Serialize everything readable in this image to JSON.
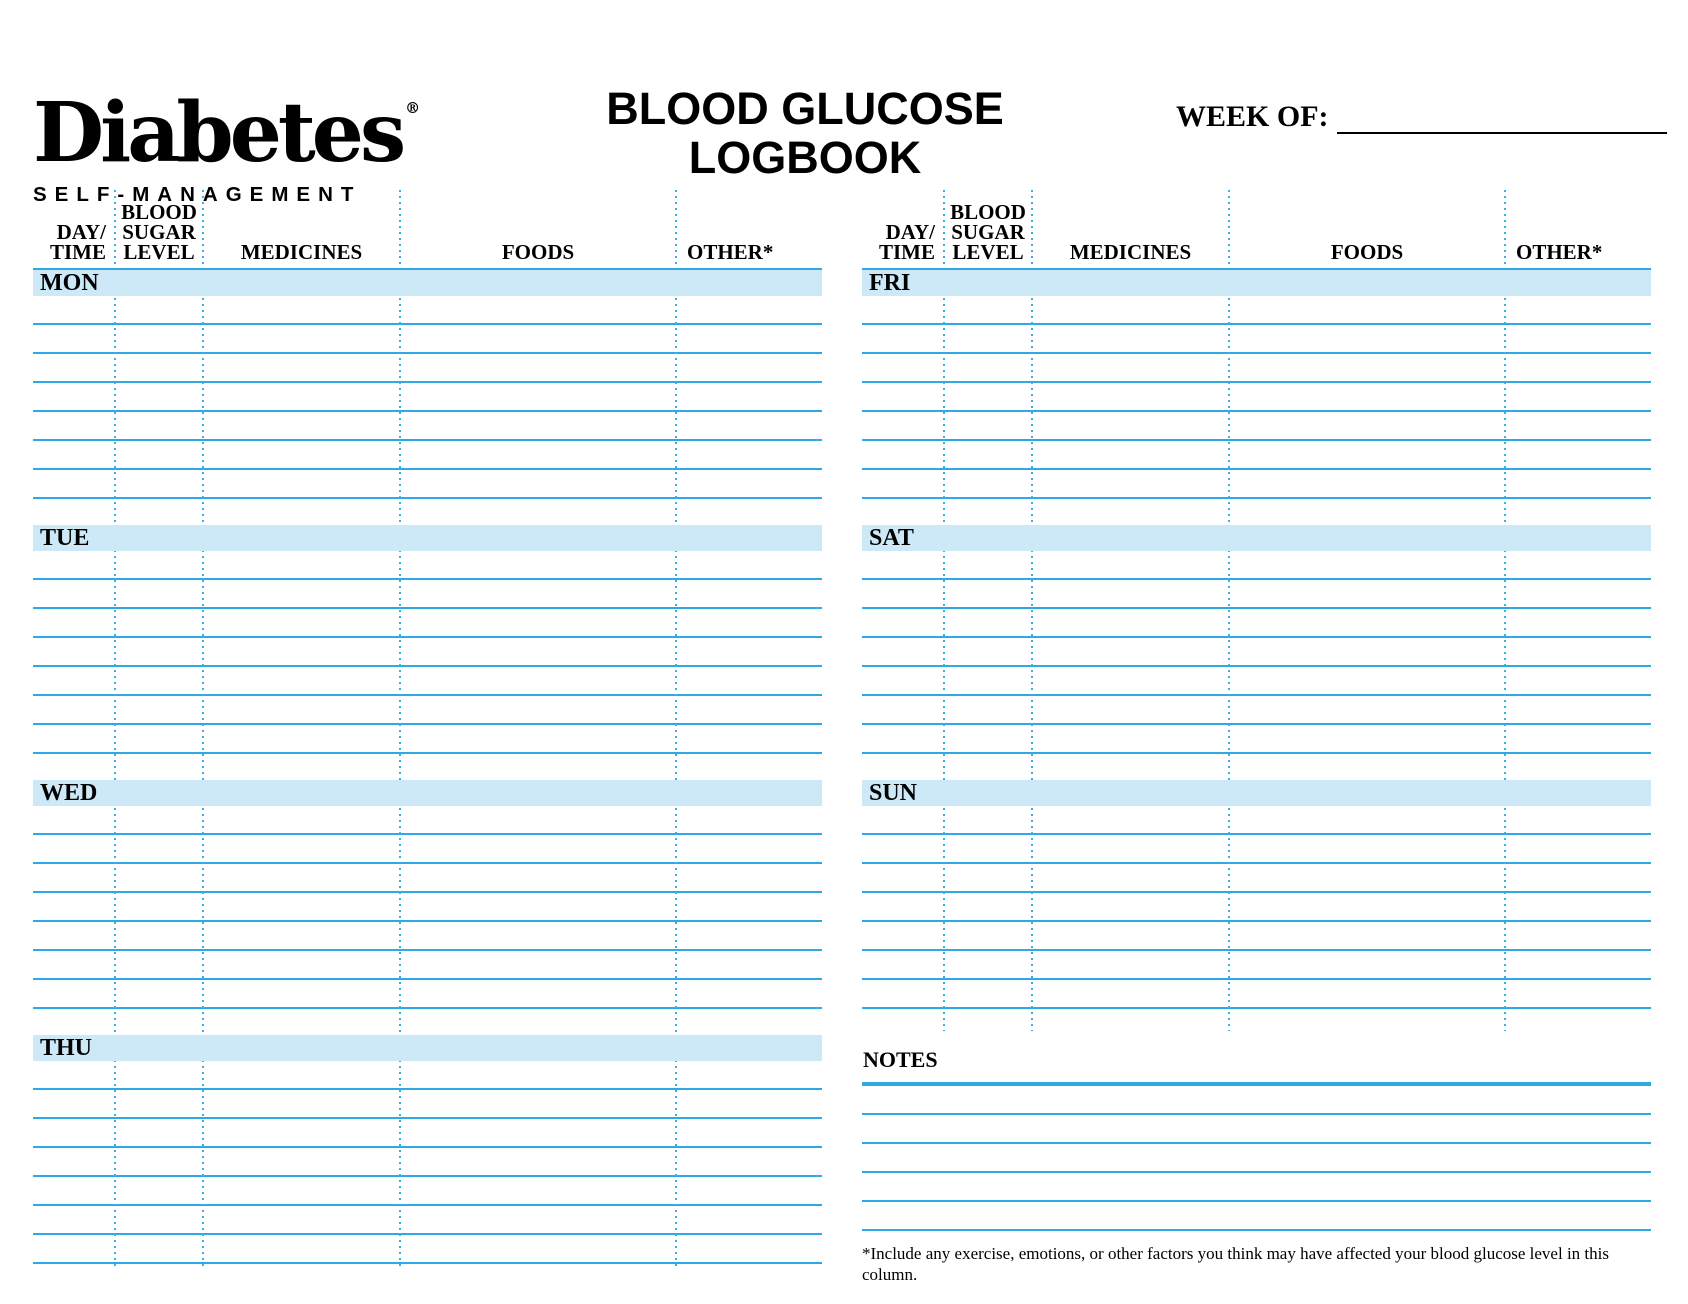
{
  "logo": {
    "brand": "Diabetes",
    "registered_mark": "®",
    "tagline": "SELF-MANAGEMENT"
  },
  "title": {
    "line1": "BLOOD GLUCOSE",
    "line2": "LOGBOOK"
  },
  "week_of": {
    "label": "WEEK OF:",
    "value": ""
  },
  "table": {
    "columns": [
      {
        "l1": "DAY/",
        "l2": "TIME"
      },
      {
        "l1": "BLOOD",
        "l2": "SUGAR",
        "l3": "LEVEL"
      },
      {
        "l1": "MEDICINES"
      },
      {
        "l1": "FOODS"
      },
      {
        "l1": "OTHER*"
      }
    ],
    "left_days": [
      "MON",
      "TUE",
      "WED",
      "THU"
    ],
    "right_days": [
      "FRI",
      "SAT",
      "SUN"
    ],
    "rows_per_day": 7
  },
  "notes": {
    "label": "NOTES",
    "blank_lines": 5
  },
  "footnote": "*Include any exercise, emotions, or other factors you think may have affected your blood glucose level in this column.",
  "colors": {
    "rule_blue": "#2fa9e1",
    "dot_blue": "#3cb0e5",
    "day_bar_fill": "#cde9f8",
    "ink": "#000000"
  }
}
